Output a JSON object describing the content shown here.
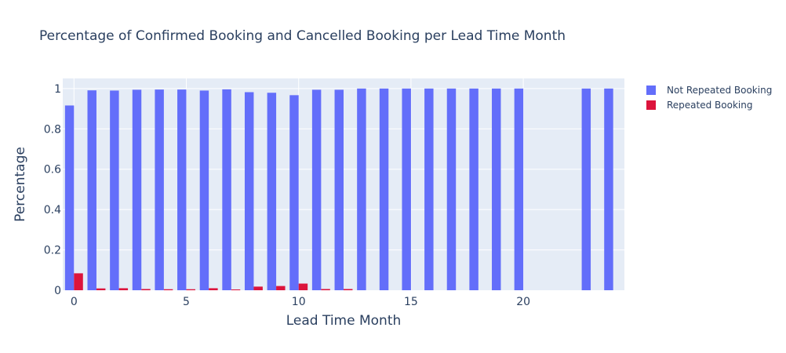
{
  "chart_data": {
    "type": "bar",
    "title": "Percentage of Confirmed Booking and Cancelled Booking per Lead Time Month",
    "xlabel": "Lead Time Month",
    "ylabel": "Percentage",
    "xlim": [
      -0.5,
      24.5
    ],
    "ylim": [
      0,
      1.05
    ],
    "x_ticks": [
      0,
      5,
      10,
      15,
      20
    ],
    "y_ticks": [
      0,
      0.2,
      0.4,
      0.6,
      0.8,
      1
    ],
    "y_tick_labels": [
      "0",
      "0.2",
      "0.4",
      "0.6",
      "0.8",
      "1"
    ],
    "grid": true,
    "legend_position": "top-right",
    "x": [
      0,
      1,
      2,
      3,
      4,
      5,
      6,
      7,
      8,
      9,
      10,
      11,
      12,
      13,
      14,
      15,
      16,
      17,
      18,
      19,
      20,
      21,
      22,
      23,
      24
    ],
    "series": [
      {
        "name": "Not Repeated Booking",
        "color": "#636efa",
        "values": [
          0.916,
          0.991,
          0.99,
          0.994,
          0.995,
          0.995,
          0.99,
          0.996,
          0.982,
          0.979,
          0.967,
          0.994,
          0.994,
          1.0,
          1.0,
          1.0,
          1.0,
          1.0,
          1.0,
          1.0,
          1.0,
          null,
          null,
          1.0,
          1.0
        ]
      },
      {
        "name": "Repeated Booking",
        "color": "#dc143c",
        "values": [
          0.084,
          0.009,
          0.01,
          0.006,
          0.005,
          0.005,
          0.01,
          0.004,
          0.018,
          0.021,
          0.033,
          0.006,
          0.006,
          0,
          0,
          0,
          0,
          0,
          0,
          0,
          0,
          null,
          null,
          0,
          0
        ]
      }
    ]
  }
}
